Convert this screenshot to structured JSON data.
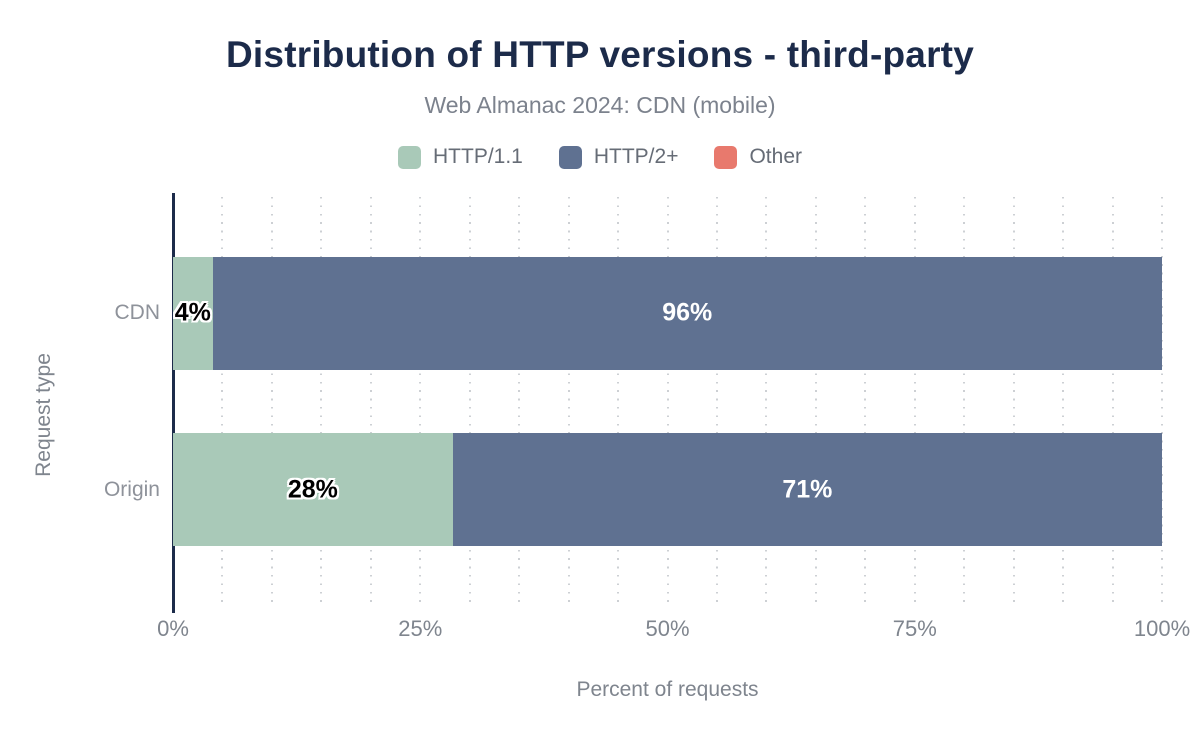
{
  "header": {
    "title": "Distribution of HTTP versions - third-party",
    "subtitle": "Web Almanac 2024: CDN (mobile)"
  },
  "chart_data": {
    "type": "bar",
    "stacked": true,
    "orientation": "horizontal",
    "title": "Distribution of HTTP versions - third-party",
    "subtitle": "Web Almanac 2024: CDN (mobile)",
    "categories": [
      "CDN",
      "Origin"
    ],
    "series": [
      {
        "name": "HTTP/1.1",
        "color": "#a9c9b8",
        "label_color": "#000000",
        "values": [
          4,
          28
        ]
      },
      {
        "name": "HTTP/2+",
        "color": "#5f7191",
        "label_color": "#ffffff",
        "values": [
          96,
          71
        ]
      },
      {
        "name": "Other",
        "color": "#e8796d",
        "label_color": "#ffffff",
        "values": [
          0,
          0
        ]
      }
    ],
    "value_labels": [
      [
        "4%",
        "96%"
      ],
      [
        "28%",
        "71%"
      ]
    ],
    "xlabel": "Percent of requests",
    "ylabel": "Request type",
    "x_ticks": [
      "0%",
      "25%",
      "50%",
      "75%",
      "100%"
    ],
    "xlim": [
      0,
      100
    ],
    "grid": "vertical-dotted-every-5-percent",
    "legend_position": "top"
  },
  "colors": {
    "title": "#1c2b4a",
    "axis_line": "#1c2b4a",
    "muted_text": "#7f858e",
    "grid_dot": "#cdd0d4",
    "background": "#ffffff"
  }
}
